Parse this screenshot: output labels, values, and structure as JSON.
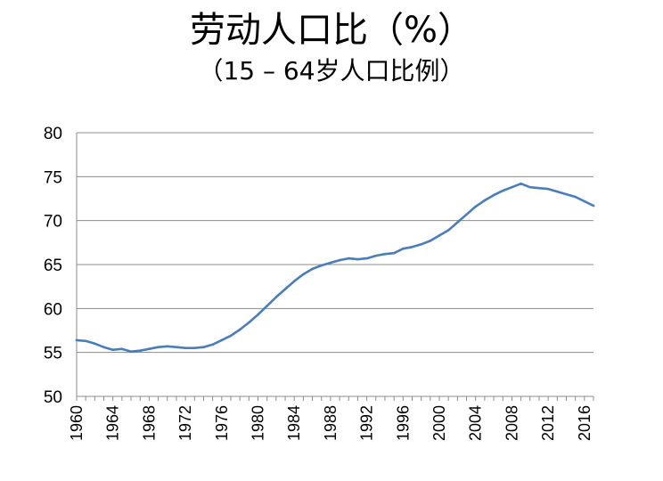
{
  "title": "劳动人口比（%）",
  "subtitle": "（15 – 64岁人口比例）",
  "chart_data": {
    "type": "line",
    "title": "劳动人口比（%）",
    "subtitle": "（15 – 64岁人口比例）",
    "xlabel": "",
    "ylabel": "",
    "xlim": [
      1960,
      2017
    ],
    "ylim": [
      50,
      80
    ],
    "y_ticks": [
      50,
      55,
      60,
      65,
      70,
      75,
      80
    ],
    "x_ticks": [
      "1960",
      "1964",
      "1968",
      "1972",
      "1976",
      "1980",
      "1984",
      "1988",
      "1992",
      "1996",
      "2000",
      "2004",
      "2008",
      "2012",
      "2016"
    ],
    "grid": "horizontal",
    "legend": "none",
    "series": [
      {
        "color": "#4a7ebb",
        "x": [
          1960,
          1961,
          1962,
          1963,
          1964,
          1965,
          1966,
          1967,
          1968,
          1969,
          1970,
          1971,
          1972,
          1973,
          1974,
          1975,
          1976,
          1977,
          1978,
          1979,
          1980,
          1981,
          1982,
          1983,
          1984,
          1985,
          1986,
          1987,
          1988,
          1989,
          1990,
          1991,
          1992,
          1993,
          1994,
          1995,
          1996,
          1997,
          1998,
          1999,
          2000,
          2001,
          2002,
          2003,
          2004,
          2005,
          2006,
          2007,
          2008,
          2009,
          2010,
          2011,
          2012,
          2013,
          2014,
          2015,
          2016,
          2017
        ],
        "y": [
          56.4,
          56.3,
          56.0,
          55.6,
          55.3,
          55.4,
          55.1,
          55.2,
          55.4,
          55.6,
          55.7,
          55.6,
          55.5,
          55.5,
          55.6,
          55.9,
          56.4,
          56.9,
          57.6,
          58.4,
          59.3,
          60.3,
          61.3,
          62.2,
          63.1,
          63.9,
          64.5,
          64.9,
          65.2,
          65.5,
          65.7,
          65.6,
          65.7,
          66.0,
          66.2,
          66.3,
          66.8,
          67.0,
          67.3,
          67.7,
          68.3,
          68.9,
          69.8,
          70.7,
          71.6,
          72.3,
          72.9,
          73.4,
          73.8,
          74.2,
          73.8,
          73.7,
          73.6,
          73.3,
          73.0,
          72.7,
          72.2,
          71.7
        ]
      }
    ]
  }
}
